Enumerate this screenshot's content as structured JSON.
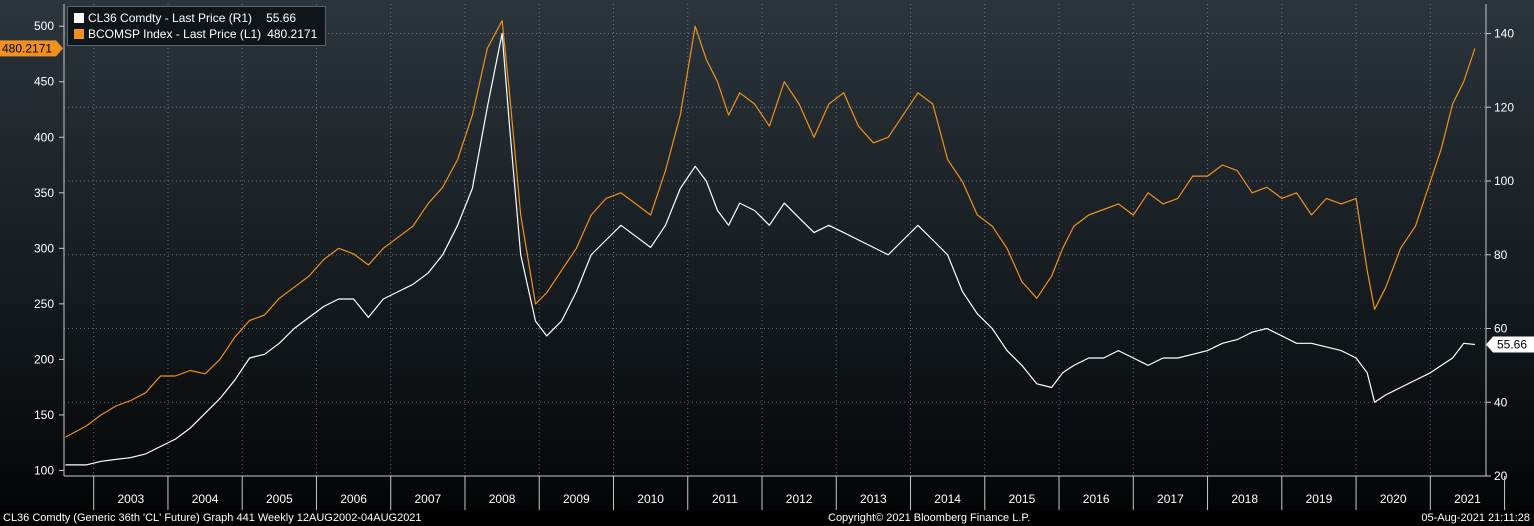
{
  "legend": {
    "entries": [
      {
        "label": "CL36 Comdty - Last Price (R1)",
        "value": "55.66",
        "color": "#ffffff"
      },
      {
        "label": "BCOMSP Index - Last Price (L1)",
        "value": "480.2171",
        "color": "#f0901e"
      }
    ]
  },
  "footer": {
    "left": "CL36 Comdty (Generic 36th 'CL' Future) Graph 441  Weekly 12AUG2002-04AUG2021",
    "center": "Copyright© 2021 Bloomberg Finance L.P.",
    "right": "05-Aug-2021 21:11:28"
  },
  "chart_data": {
    "type": "line",
    "x_ticks": [
      "2003",
      "2004",
      "2005",
      "2006",
      "2007",
      "2008",
      "2009",
      "2010",
      "2011",
      "2012",
      "2013",
      "2014",
      "2015",
      "2016",
      "2017",
      "2018",
      "2019",
      "2020",
      "2021"
    ],
    "y_left": {
      "ticks": [
        100,
        150,
        200,
        250,
        300,
        350,
        400,
        450,
        500
      ],
      "range": [
        95,
        520
      ]
    },
    "y_right": {
      "ticks": [
        20,
        40,
        60,
        80,
        100,
        120,
        140
      ],
      "range": [
        20,
        148
      ]
    },
    "last_value_labels": {
      "left": "480.2171",
      "right": "55.66"
    },
    "series": [
      {
        "name": "BCOMSP Index - Last Price (L1)",
        "axis": "left",
        "color": "#f0901e",
        "x": [
          2002.62,
          2002.9,
          2003.1,
          2003.3,
          2003.5,
          2003.7,
          2003.9,
          2004.1,
          2004.3,
          2004.5,
          2004.7,
          2004.9,
          2005.1,
          2005.3,
          2005.5,
          2005.7,
          2005.9,
          2006.1,
          2006.3,
          2006.5,
          2006.7,
          2006.9,
          2007.1,
          2007.3,
          2007.5,
          2007.7,
          2007.9,
          2008.1,
          2008.3,
          2008.5,
          2008.6,
          2008.75,
          2008.95,
          2009.1,
          2009.3,
          2009.5,
          2009.7,
          2009.9,
          2010.1,
          2010.3,
          2010.5,
          2010.7,
          2010.9,
          2011.1,
          2011.25,
          2011.4,
          2011.55,
          2011.7,
          2011.9,
          2012.1,
          2012.3,
          2012.5,
          2012.7,
          2012.9,
          2013.1,
          2013.3,
          2013.5,
          2013.7,
          2013.9,
          2014.1,
          2014.3,
          2014.5,
          2014.7,
          2014.9,
          2015.1,
          2015.3,
          2015.5,
          2015.7,
          2015.9,
          2016.05,
          2016.2,
          2016.4,
          2016.6,
          2016.8,
          2017.0,
          2017.2,
          2017.4,
          2017.6,
          2017.8,
          2018.0,
          2018.2,
          2018.4,
          2018.6,
          2018.8,
          2019.0,
          2019.2,
          2019.4,
          2019.6,
          2019.8,
          2020.0,
          2020.15,
          2020.25,
          2020.4,
          2020.6,
          2020.8,
          2021.0,
          2021.15,
          2021.3,
          2021.45,
          2021.6
        ],
        "y": [
          130,
          140,
          150,
          158,
          163,
          170,
          185,
          185,
          190,
          187,
          200,
          220,
          235,
          240,
          255,
          265,
          275,
          290,
          300,
          295,
          285,
          300,
          310,
          320,
          340,
          355,
          380,
          420,
          480,
          505,
          440,
          330,
          250,
          260,
          280,
          300,
          330,
          345,
          350,
          340,
          330,
          370,
          420,
          500,
          470,
          450,
          420,
          440,
          430,
          410,
          450,
          430,
          400,
          430,
          440,
          410,
          395,
          400,
          420,
          440,
          430,
          380,
          360,
          330,
          320,
          300,
          270,
          255,
          275,
          300,
          320,
          330,
          335,
          340,
          330,
          350,
          340,
          345,
          365,
          365,
          375,
          370,
          350,
          355,
          345,
          350,
          330,
          345,
          340,
          345,
          280,
          245,
          265,
          300,
          320,
          360,
          390,
          430,
          450,
          480
        ],
        "markers": []
      },
      {
        "name": "CL36 Comdty - Last Price (R1)",
        "axis": "right",
        "color": "#ffffff",
        "x": [
          2002.62,
          2002.9,
          2003.1,
          2003.3,
          2003.5,
          2003.7,
          2003.9,
          2004.1,
          2004.3,
          2004.5,
          2004.7,
          2004.9,
          2005.1,
          2005.3,
          2005.5,
          2005.7,
          2005.9,
          2006.1,
          2006.3,
          2006.5,
          2006.7,
          2006.9,
          2007.1,
          2007.3,
          2007.5,
          2007.7,
          2007.9,
          2008.1,
          2008.3,
          2008.5,
          2008.6,
          2008.75,
          2008.95,
          2009.1,
          2009.3,
          2009.5,
          2009.7,
          2009.9,
          2010.1,
          2010.3,
          2010.5,
          2010.7,
          2010.9,
          2011.1,
          2011.25,
          2011.4,
          2011.55,
          2011.7,
          2011.9,
          2012.1,
          2012.3,
          2012.5,
          2012.7,
          2012.9,
          2013.1,
          2013.3,
          2013.5,
          2013.7,
          2013.9,
          2014.1,
          2014.3,
          2014.5,
          2014.7,
          2014.9,
          2015.1,
          2015.3,
          2015.5,
          2015.7,
          2015.9,
          2016.05,
          2016.2,
          2016.4,
          2016.6,
          2016.8,
          2017.0,
          2017.2,
          2017.4,
          2017.6,
          2017.8,
          2018.0,
          2018.2,
          2018.4,
          2018.6,
          2018.8,
          2019.0,
          2019.2,
          2019.4,
          2019.6,
          2019.8,
          2020.0,
          2020.15,
          2020.25,
          2020.4,
          2020.6,
          2020.8,
          2021.0,
          2021.15,
          2021.3,
          2021.45,
          2021.6
        ],
        "y": [
          23,
          23,
          24,
          24.5,
          25,
          26,
          28,
          30,
          33,
          37,
          41,
          46,
          52,
          53,
          56,
          60,
          63,
          66,
          68,
          68,
          63,
          68,
          70,
          72,
          75,
          80,
          88,
          98,
          120,
          140,
          115,
          80,
          62,
          58,
          62,
          70,
          80,
          84,
          88,
          85,
          82,
          88,
          98,
          104,
          100,
          92,
          88,
          94,
          92,
          88,
          94,
          90,
          86,
          88,
          86,
          84,
          82,
          80,
          84,
          88,
          84,
          80,
          70,
          64,
          60,
          54,
          50,
          45,
          44,
          48,
          50,
          52,
          52,
          54,
          52,
          50,
          52,
          52,
          53,
          54,
          56,
          57,
          59,
          60,
          58,
          56,
          56,
          55,
          54,
          52,
          48,
          40,
          42,
          44,
          46,
          48,
          50,
          52,
          56,
          55.66
        ],
        "markers": []
      }
    ],
    "grid": true,
    "legend_position": "top-left",
    "title": "",
    "xlabel": "",
    "ylabel": ""
  }
}
